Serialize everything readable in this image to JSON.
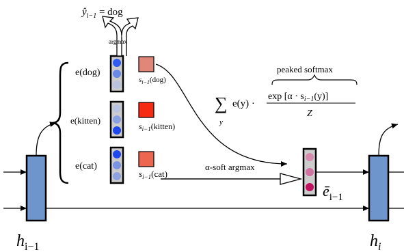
{
  "top_label": {
    "y": "ŷ",
    "sub": "i−1",
    "rest": " = dog"
  },
  "argmax_label": "argmax",
  "embeddings": [
    {
      "label": "e(dog)",
      "score_label": "s",
      "score_sub": "i−1",
      "score_arg": "(dog)",
      "color": "#e0877a",
      "dots": [
        "#2f5df2",
        "#6a88e6",
        "#b9c3df"
      ]
    },
    {
      "label": "e(kitten)",
      "score_label": "s",
      "score_sub": "i−1",
      "score_arg": "(kitten)",
      "color": "#f52b14",
      "dots": [
        "#b9c3df",
        "#8aa0e4",
        "#1f47ee"
      ]
    },
    {
      "label": "e(cat)",
      "score_label": "s",
      "score_sub": "i−1",
      "score_arg": "(cat)",
      "color": "#ec6650",
      "dots": [
        "#1f47ee",
        "#7b93e3",
        "#8ea2e0"
      ]
    }
  ],
  "peaked_softmax_label": "peaked softmax",
  "sum_expr": {
    "sum": "∑",
    "sum_sub": "y",
    "term": "e(y) ·",
    "numerator": "exp [α · s",
    "num_sub": "i−1",
    "num_tail": "(y)]",
    "denominator": "Z"
  },
  "soft_argmax_label": "α-soft argmax",
  "ebar": {
    "symbol": "ē",
    "sub": "i−1",
    "dots": [
      "#d88aae",
      "#d172a2",
      "#c2105e"
    ]
  },
  "h_prev": {
    "symbol": "h",
    "sub": "i−1"
  },
  "h_cur": {
    "symbol": "h",
    "sub": "i"
  },
  "colors": {
    "rnn_box": "#6f95cd",
    "vector_bg": "#cccccc"
  }
}
